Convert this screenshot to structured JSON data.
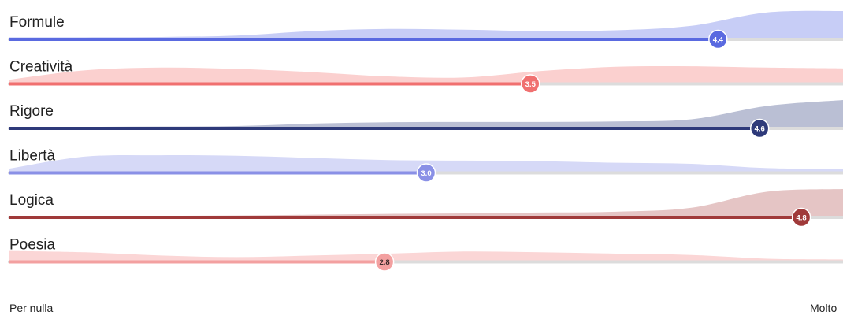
{
  "chart_data": {
    "type": "ridgeline-scale",
    "scale": {
      "min": 1,
      "max": 5
    },
    "axis_labels": {
      "min": "Per nulla",
      "max": "Molto"
    },
    "rows": [
      {
        "label": "Formule",
        "value": 4.4,
        "value_label": "4.4",
        "color": "#5a6ae0",
        "track_color": "#dcdcdc",
        "fill_color": "#c7cdf6",
        "distribution": [
          0.02,
          0.02,
          0.03,
          0.08,
          0.25,
          0.33,
          0.3,
          0.25,
          0.28,
          0.45,
          0.95,
          1.0
        ]
      },
      {
        "label": "Creatività",
        "value": 3.5,
        "value_label": "3.5",
        "color": "#f07070",
        "track_color": "#dcdcdc",
        "fill_color": "#fbd0cf",
        "distribution": [
          0.1,
          0.45,
          0.55,
          0.5,
          0.38,
          0.22,
          0.18,
          0.42,
          0.58,
          0.6,
          0.55,
          0.52
        ]
      },
      {
        "label": "Rigore",
        "value": 4.6,
        "value_label": "4.6",
        "color": "#2e3a7a",
        "track_color": "#dcdcdc",
        "fill_color": "#babfd4",
        "distribution": [
          0.0,
          0.0,
          0.01,
          0.03,
          0.12,
          0.17,
          0.18,
          0.18,
          0.2,
          0.28,
          0.78,
          1.0
        ]
      },
      {
        "label": "Libertà",
        "value": 3.0,
        "value_label": "3.0",
        "color": "#8a90e6",
        "track_color": "#dcdcdc",
        "fill_color": "#d6d9f7",
        "distribution": [
          0.1,
          0.55,
          0.6,
          0.58,
          0.5,
          0.42,
          0.4,
          0.38,
          0.32,
          0.28,
          0.12,
          0.08
        ]
      },
      {
        "label": "Logica",
        "value": 4.8,
        "value_label": "4.8",
        "color": "#a03a3a",
        "track_color": "#dcdcdc",
        "fill_color": "#e5c5c5",
        "distribution": [
          0.0,
          0.0,
          0.0,
          0.01,
          0.04,
          0.07,
          0.09,
          0.12,
          0.15,
          0.3,
          0.9,
          1.0
        ]
      },
      {
        "label": "Poesia",
        "value": 2.8,
        "value_label": "2.8",
        "color": "#f3a0a0",
        "track_color": "#dcdcdc",
        "fill_color": "#fbd6d6",
        "distribution": [
          0.35,
          0.3,
          0.18,
          0.12,
          0.18,
          0.25,
          0.33,
          0.3,
          0.25,
          0.2,
          0.06,
          0.03
        ]
      }
    ]
  }
}
